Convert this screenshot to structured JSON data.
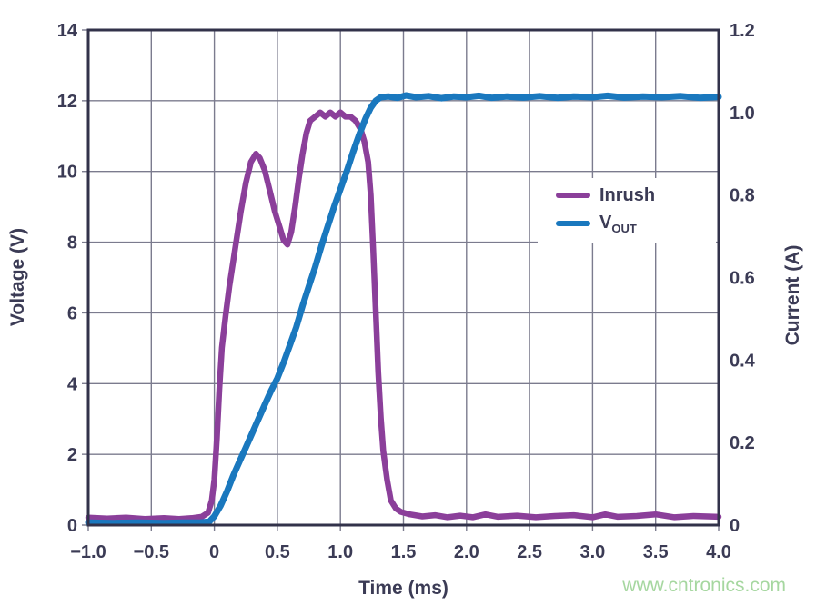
{
  "figure": {
    "background": "#ffffff"
  },
  "watermark": {
    "text": "www.cntronics.com",
    "color": "#a6d7a0"
  },
  "chart_data": {
    "type": "line",
    "title": "",
    "xlabel": "Time (ms)",
    "ylabel_left": "Voltage (V)",
    "ylabel_right": "Current (A)",
    "xlim": [
      -1.0,
      4.0
    ],
    "ylim_left": [
      0,
      14
    ],
    "ylim_right": [
      0,
      1.2
    ],
    "grid": true,
    "frame_color": "#32324a",
    "grid_color": "#7b7b8e",
    "text_color": "#3b3b55",
    "xticks": {
      "values": [
        -1.0,
        -0.5,
        0,
        0.5,
        1.0,
        1.5,
        2.0,
        2.5,
        3.0,
        3.5,
        4.0
      ],
      "labels": [
        "−1.0",
        "−0.5",
        "0",
        "0.5",
        "1.0",
        "1.5",
        "2.0",
        "2.5",
        "3.0",
        "3.5",
        "4.0"
      ]
    },
    "yticks_left": {
      "values": [
        0,
        2,
        4,
        6,
        8,
        10,
        12,
        14
      ],
      "labels": [
        "0",
        "2",
        "4",
        "6",
        "8",
        "10",
        "12",
        "14"
      ]
    },
    "yticks_right": {
      "values": [
        0,
        0.2,
        0.4,
        0.6,
        0.8,
        1.0,
        1.2
      ],
      "labels": [
        "0",
        "0.2",
        "0.4",
        "0.6",
        "0.8",
        "1.0",
        "1.2"
      ]
    },
    "legend": {
      "position": "upper right inside",
      "entries": [
        {
          "label": "Inrush",
          "sub": "",
          "color": "#8b3f9a"
        },
        {
          "label": "V",
          "sub": "OUT",
          "color": "#1a78be"
        }
      ]
    },
    "series": [
      {
        "name": "Inrush",
        "axis": "right",
        "unit": "A",
        "color": "#8b3f9a",
        "width": 6.5,
        "points": [
          [
            -1.0,
            0.018
          ],
          [
            -0.85,
            0.016
          ],
          [
            -0.7,
            0.018
          ],
          [
            -0.55,
            0.015
          ],
          [
            -0.4,
            0.017
          ],
          [
            -0.28,
            0.015
          ],
          [
            -0.18,
            0.017
          ],
          [
            -0.1,
            0.02
          ],
          [
            -0.05,
            0.03
          ],
          [
            -0.02,
            0.06
          ],
          [
            0.0,
            0.11
          ],
          [
            0.02,
            0.21
          ],
          [
            0.04,
            0.33
          ],
          [
            0.06,
            0.43
          ],
          [
            0.09,
            0.51
          ],
          [
            0.12,
            0.58
          ],
          [
            0.15,
            0.64
          ],
          [
            0.18,
            0.7
          ],
          [
            0.21,
            0.76
          ],
          [
            0.25,
            0.83
          ],
          [
            0.29,
            0.88
          ],
          [
            0.33,
            0.9
          ],
          [
            0.36,
            0.89
          ],
          [
            0.4,
            0.86
          ],
          [
            0.44,
            0.81
          ],
          [
            0.48,
            0.76
          ],
          [
            0.52,
            0.72
          ],
          [
            0.55,
            0.69
          ],
          [
            0.58,
            0.68
          ],
          [
            0.61,
            0.71
          ],
          [
            0.64,
            0.77
          ],
          [
            0.67,
            0.84
          ],
          [
            0.7,
            0.9
          ],
          [
            0.73,
            0.95
          ],
          [
            0.76,
            0.98
          ],
          [
            0.8,
            0.99
          ],
          [
            0.84,
            1.0
          ],
          [
            0.88,
            0.99
          ],
          [
            0.92,
            1.0
          ],
          [
            0.96,
            0.99
          ],
          [
            1.0,
            1.0
          ],
          [
            1.04,
            0.99
          ],
          [
            1.08,
            0.99
          ],
          [
            1.12,
            0.98
          ],
          [
            1.16,
            0.96
          ],
          [
            1.19,
            0.93
          ],
          [
            1.22,
            0.88
          ],
          [
            1.24,
            0.8
          ],
          [
            1.26,
            0.67
          ],
          [
            1.28,
            0.52
          ],
          [
            1.3,
            0.37
          ],
          [
            1.32,
            0.26
          ],
          [
            1.34,
            0.18
          ],
          [
            1.37,
            0.11
          ],
          [
            1.4,
            0.06
          ],
          [
            1.44,
            0.04
          ],
          [
            1.48,
            0.032
          ],
          [
            1.55,
            0.026
          ],
          [
            1.65,
            0.021
          ],
          [
            1.75,
            0.024
          ],
          [
            1.85,
            0.019
          ],
          [
            1.95,
            0.023
          ],
          [
            2.05,
            0.019
          ],
          [
            2.15,
            0.026
          ],
          [
            2.25,
            0.02
          ],
          [
            2.4,
            0.023
          ],
          [
            2.55,
            0.019
          ],
          [
            2.7,
            0.022
          ],
          [
            2.85,
            0.024
          ],
          [
            3.0,
            0.019
          ],
          [
            3.1,
            0.026
          ],
          [
            3.2,
            0.02
          ],
          [
            3.35,
            0.022
          ],
          [
            3.5,
            0.026
          ],
          [
            3.65,
            0.019
          ],
          [
            3.8,
            0.022
          ],
          [
            4.0,
            0.02
          ]
        ]
      },
      {
        "name": "VOUT",
        "axis": "left",
        "unit": "V",
        "color": "#1a78be",
        "width": 7,
        "points": [
          [
            -1.0,
            0.07
          ],
          [
            -0.8,
            0.06
          ],
          [
            -0.6,
            0.07
          ],
          [
            -0.4,
            0.06
          ],
          [
            -0.25,
            0.07
          ],
          [
            -0.12,
            0.07
          ],
          [
            -0.04,
            0.1
          ],
          [
            0.0,
            0.25
          ],
          [
            0.05,
            0.55
          ],
          [
            0.1,
            0.95
          ],
          [
            0.15,
            1.4
          ],
          [
            0.2,
            1.8
          ],
          [
            0.25,
            2.2
          ],
          [
            0.3,
            2.6
          ],
          [
            0.35,
            3.0
          ],
          [
            0.4,
            3.4
          ],
          [
            0.45,
            3.8
          ],
          [
            0.5,
            4.15
          ],
          [
            0.55,
            4.6
          ],
          [
            0.6,
            5.1
          ],
          [
            0.65,
            5.6
          ],
          [
            0.7,
            6.2
          ],
          [
            0.75,
            6.75
          ],
          [
            0.8,
            7.3
          ],
          [
            0.85,
            7.9
          ],
          [
            0.9,
            8.45
          ],
          [
            0.95,
            9.0
          ],
          [
            1.0,
            9.5
          ],
          [
            1.05,
            10.0
          ],
          [
            1.1,
            10.55
          ],
          [
            1.15,
            11.05
          ],
          [
            1.2,
            11.5
          ],
          [
            1.24,
            11.8
          ],
          [
            1.28,
            12.0
          ],
          [
            1.32,
            12.1
          ],
          [
            1.38,
            12.12
          ],
          [
            1.45,
            12.08
          ],
          [
            1.52,
            12.15
          ],
          [
            1.6,
            12.1
          ],
          [
            1.7,
            12.13
          ],
          [
            1.8,
            12.07
          ],
          [
            1.9,
            12.12
          ],
          [
            2.0,
            12.1
          ],
          [
            2.1,
            12.14
          ],
          [
            2.2,
            12.08
          ],
          [
            2.32,
            12.12
          ],
          [
            2.45,
            12.09
          ],
          [
            2.58,
            12.13
          ],
          [
            2.72,
            12.08
          ],
          [
            2.85,
            12.12
          ],
          [
            3.0,
            12.1
          ],
          [
            3.12,
            12.14
          ],
          [
            3.25,
            12.09
          ],
          [
            3.4,
            12.12
          ],
          [
            3.55,
            12.1
          ],
          [
            3.7,
            12.13
          ],
          [
            3.85,
            12.08
          ],
          [
            4.0,
            12.11
          ]
        ]
      }
    ]
  }
}
